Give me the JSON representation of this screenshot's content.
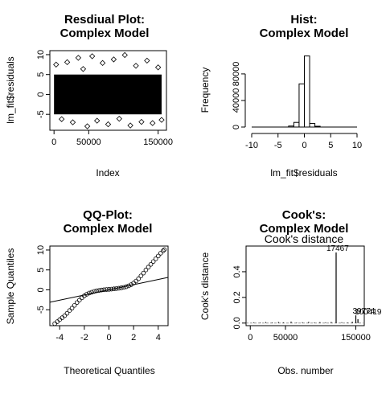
{
  "chart_data": [
    {
      "type": "scatter",
      "title": "Resdiual Plot:\nComplex Model",
      "xlabel": "Index",
      "ylabel": "lm_fit$residuals",
      "xlim": [
        -6000,
        162000
      ],
      "ylim": [
        -9,
        11
      ],
      "x_ticks": [
        0,
        50000,
        150000
      ],
      "y_ticks": [
        -5,
        0,
        5,
        10
      ],
      "n_points": 155000,
      "bulk_band": [
        -5,
        5
      ],
      "sample_points": [
        {
          "x": 3000,
          "y": 7.5
        },
        {
          "x": 11000,
          "y": -6.2
        },
        {
          "x": 19000,
          "y": 8.1
        },
        {
          "x": 27000,
          "y": -7.0
        },
        {
          "x": 35000,
          "y": 9.2
        },
        {
          "x": 42000,
          "y": 6.4
        },
        {
          "x": 48000,
          "y": -8.0
        },
        {
          "x": 55000,
          "y": 9.6
        },
        {
          "x": 62000,
          "y": -6.6
        },
        {
          "x": 70000,
          "y": 7.9
        },
        {
          "x": 78000,
          "y": -7.5
        },
        {
          "x": 86000,
          "y": 8.8
        },
        {
          "x": 94000,
          "y": -6.1
        },
        {
          "x": 102000,
          "y": 9.9
        },
        {
          "x": 110000,
          "y": -7.8
        },
        {
          "x": 118000,
          "y": 7.2
        },
        {
          "x": 126000,
          "y": -6.9
        },
        {
          "x": 134000,
          "y": 8.5
        },
        {
          "x": 142000,
          "y": -7.2
        },
        {
          "x": 150000,
          "y": 6.8
        },
        {
          "x": 155000,
          "y": -6.4
        }
      ]
    },
    {
      "type": "bar",
      "title": "Hist:\nComplex Model",
      "xlabel": "lm_fit$residuals",
      "ylabel": "Frequency",
      "xlim": [
        -10,
        10
      ],
      "ylim": [
        0,
        115000
      ],
      "x_ticks": [
        -10,
        -5,
        0,
        5,
        10
      ],
      "y_ticks": [
        0,
        40000,
        80000
      ],
      "bins": [
        {
          "from": -3,
          "to": -2,
          "count": 1500
        },
        {
          "from": -2,
          "to": -1,
          "count": 7000
        },
        {
          "from": -1,
          "to": 0,
          "count": 65000
        },
        {
          "from": 0,
          "to": 1,
          "count": 107000
        },
        {
          "from": 1,
          "to": 2,
          "count": 5500
        },
        {
          "from": 2,
          "to": 3,
          "count": 1200
        }
      ]
    },
    {
      "type": "scatter",
      "title": "QQ-Plot:\nComplex Model",
      "xlabel": "Theoretical Quantiles",
      "ylabel": "Sample Quantiles",
      "xlim": [
        -4.8,
        4.8
      ],
      "ylim": [
        -9,
        11
      ],
      "x_ticks": [
        -4,
        -2,
        0,
        2,
        4
      ],
      "y_ticks": [
        -5,
        0,
        5,
        10
      ],
      "reference_line": {
        "intercept": 0,
        "slope": 0.65
      },
      "points": [
        {
          "x": -4.4,
          "y": -8.5
        },
        {
          "x": -4.2,
          "y": -8.0
        },
        {
          "x": -4.0,
          "y": -7.5
        },
        {
          "x": -3.8,
          "y": -7.0
        },
        {
          "x": -3.6,
          "y": -6.5
        },
        {
          "x": -3.4,
          "y": -5.9
        },
        {
          "x": -3.2,
          "y": -5.2
        },
        {
          "x": -3.0,
          "y": -4.6
        },
        {
          "x": -2.8,
          "y": -3.9
        },
        {
          "x": -2.6,
          "y": -3.2
        },
        {
          "x": -2.4,
          "y": -2.6
        },
        {
          "x": -2.2,
          "y": -2.0
        },
        {
          "x": -2.0,
          "y": -1.5
        },
        {
          "x": -1.8,
          "y": -1.1
        },
        {
          "x": -1.6,
          "y": -0.8
        },
        {
          "x": -1.4,
          "y": -0.6
        },
        {
          "x": -1.2,
          "y": -0.4
        },
        {
          "x": -1.0,
          "y": -0.25
        },
        {
          "x": -0.8,
          "y": -0.15
        },
        {
          "x": -0.6,
          "y": -0.05
        },
        {
          "x": -0.4,
          "y": 0.02
        },
        {
          "x": -0.2,
          "y": 0.08
        },
        {
          "x": 0.0,
          "y": 0.12
        },
        {
          "x": 0.2,
          "y": 0.18
        },
        {
          "x": 0.4,
          "y": 0.25
        },
        {
          "x": 0.6,
          "y": 0.32
        },
        {
          "x": 0.8,
          "y": 0.4
        },
        {
          "x": 1.0,
          "y": 0.5
        },
        {
          "x": 1.2,
          "y": 0.62
        },
        {
          "x": 1.4,
          "y": 0.78
        },
        {
          "x": 1.6,
          "y": 1.0
        },
        {
          "x": 1.8,
          "y": 1.3
        },
        {
          "x": 2.0,
          "y": 1.7
        },
        {
          "x": 2.2,
          "y": 2.2
        },
        {
          "x": 2.4,
          "y": 2.8
        },
        {
          "x": 2.6,
          "y": 3.5
        },
        {
          "x": 2.8,
          "y": 4.2
        },
        {
          "x": 3.0,
          "y": 5.0
        },
        {
          "x": 3.2,
          "y": 5.7
        },
        {
          "x": 3.4,
          "y": 6.4
        },
        {
          "x": 3.6,
          "y": 7.1
        },
        {
          "x": 3.8,
          "y": 7.8
        },
        {
          "x": 4.0,
          "y": 8.5
        },
        {
          "x": 4.2,
          "y": 9.2
        },
        {
          "x": 4.4,
          "y": 9.8
        },
        {
          "x": 4.5,
          "y": 10.1
        }
      ]
    },
    {
      "type": "bar",
      "title": "Cook's:\nComplex Model",
      "subtitle": "Cook's distance",
      "xlabel": "Obs. number",
      "ylabel": "Cook's distance",
      "xlim": [
        -6000,
        162000
      ],
      "ylim": [
        -0.02,
        0.6
      ],
      "x_ticks": [
        0,
        50000,
        150000
      ],
      "y_ticks": [
        0.0,
        0.2,
        0.4
      ],
      "spikes": [
        {
          "x": 122000,
          "y": 0.55,
          "label": "17467"
        },
        {
          "x": 150000,
          "y": 0.06,
          "label": "39774"
        },
        {
          "x": 153000,
          "y": 0.03,
          "label": "100419"
        }
      ],
      "baseline_noise": [
        {
          "x": 5000,
          "y": 0.006
        },
        {
          "x": 14000,
          "y": 0.004
        },
        {
          "x": 22000,
          "y": 0.008
        },
        {
          "x": 31000,
          "y": 0.005
        },
        {
          "x": 40000,
          "y": 0.009
        },
        {
          "x": 47000,
          "y": 0.006
        },
        {
          "x": 58000,
          "y": 0.012
        },
        {
          "x": 66000,
          "y": 0.004
        },
        {
          "x": 74000,
          "y": 0.007
        },
        {
          "x": 83000,
          "y": 0.01
        },
        {
          "x": 91000,
          "y": 0.005
        },
        {
          "x": 99000,
          "y": 0.008
        },
        {
          "x": 107000,
          "y": 0.006
        },
        {
          "x": 115000,
          "y": 0.009
        },
        {
          "x": 130000,
          "y": 0.007
        },
        {
          "x": 138000,
          "y": 0.005
        },
        {
          "x": 145000,
          "y": 0.011
        }
      ]
    }
  ]
}
